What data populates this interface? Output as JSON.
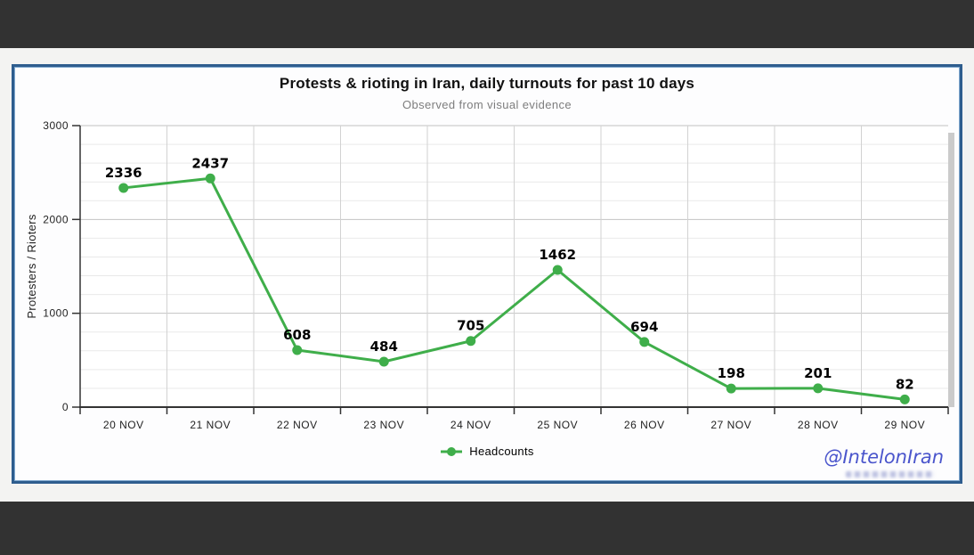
{
  "chart_data": {
    "type": "line",
    "title": "Protests & rioting in Iran, daily turnouts for past 10 days",
    "subtitle": "Observed from visual evidence",
    "categories": [
      "20 NOV",
      "21 NOV",
      "22 NOV",
      "23 NOV",
      "24 NOV",
      "25 NOV",
      "26 NOV",
      "27 NOV",
      "28 NOV",
      "29 NOV"
    ],
    "series": [
      {
        "name": "Headcounts",
        "values": [
          2336,
          2437,
          608,
          484,
          705,
          1462,
          694,
          198,
          201,
          82
        ],
        "color": "#3fae4a"
      }
    ],
    "xlabel": "",
    "ylabel": "Protesters / Rioters",
    "ylim": [
      0,
      3000
    ],
    "yticks": [
      0,
      1000,
      2000,
      3000
    ],
    "minor_grid_step": 200,
    "grid": true,
    "data_labels": true,
    "legend_position": "bottom"
  },
  "watermark": {
    "text": "@IntelonIran",
    "color": "#4a55cc"
  },
  "colors": {
    "line_green": "#3fae4a",
    "panel_border_blue": "#2e5d8e",
    "letterbox_dark": "#323232",
    "subtitle_gray": "#7d7d7d",
    "major_grid": "#c2c2c2",
    "minor_grid": "#e9e9e9",
    "axis": "#333333"
  }
}
